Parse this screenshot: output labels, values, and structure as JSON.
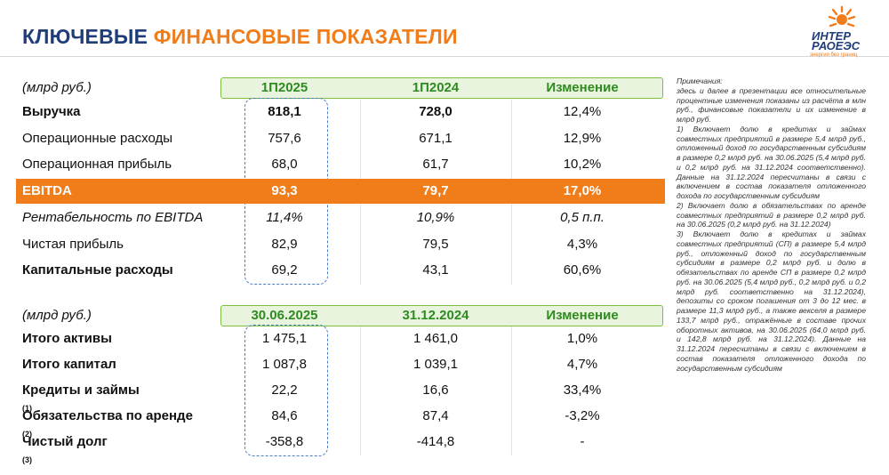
{
  "header": {
    "title_part1": "КЛЮЧЕВЫЕ",
    "title_part2": "ФИНАНСОВЫЕ ПОКАЗАТЕЛИ",
    "logo_line1": "ИНТЕР",
    "logo_line2": "РАОЕЭС",
    "logo_tagline": "энергия без границ"
  },
  "table1": {
    "header": [
      "(млрд руб.)",
      "1П2025",
      "1П2024",
      "Изменение"
    ],
    "rows": [
      {
        "label": "Выручка",
        "values": [
          "818,1",
          "728,0",
          "12,4%"
        ]
      },
      {
        "label": "Операционные расходы",
        "values": [
          "757,6",
          "671,1",
          "12,9%"
        ]
      },
      {
        "label": "Операционная прибыль",
        "values": [
          "68,0",
          "61,7",
          "10,2%"
        ]
      },
      {
        "label": "EBITDA",
        "values": [
          "93,3",
          "79,7",
          "17,0%"
        ]
      },
      {
        "label": "Рентабельность по EBITDA",
        "values": [
          "11,4%",
          "10,9%",
          "0,5 п.п."
        ]
      },
      {
        "label": "Чистая прибыль",
        "values": [
          "82,9",
          "79,5",
          "4,3%"
        ]
      },
      {
        "label": "Капитальные расходы",
        "values": [
          "69,2",
          "43,1",
          "60,6%"
        ]
      }
    ]
  },
  "table2": {
    "header": [
      "(млрд руб.)",
      "30.06.2025",
      "31.12.2024",
      "Изменение"
    ],
    "rows": [
      {
        "label": "Итого активы",
        "values": [
          "1 475,1",
          "1 461,0",
          "1,0%"
        ]
      },
      {
        "label": "Итого капитал",
        "values": [
          "1 087,8",
          "1 039,1",
          "4,7%"
        ]
      },
      {
        "label": "Кредиты и займы",
        "ref": "(1)",
        "values": [
          "22,2",
          "16,6",
          "33,4%"
        ]
      },
      {
        "label": "Обязательства по аренде",
        "ref": "(2)",
        "values": [
          "84,6",
          "87,4",
          "-3,2%"
        ]
      },
      {
        "label": "Чистый долг",
        "ref": "(3)",
        "values": [
          "-358,8",
          "-414,8",
          "-"
        ]
      }
    ]
  },
  "notes": {
    "title": "Примечания:",
    "paragraphs": [
      "здесь и далее в презентации все относительные процентные изменения показаны из расчёта в млн руб., финансовые показатели и их изменение в млрд руб.",
      "1) Включает долю в кредитах и займах совместных предприятий в размере 5,4 млрд руб., отложенный доход по государственным субсидиям в размере 0,2 млрд руб. на 30.06.2025 (5,4 млрд руб. и 0,2 млрд руб. на 31.12.2024 соответственно). Данные на 31.12.2024 пересчитаны в связи с включением в состав показателя отложенного дохода по государственным субсидиям",
      "2) Включает долю в обязательствах по аренде совместных предприятий в размере 0,2 млрд руб. на 30.06.2025 (0,2 млрд руб. на 31.12.2024)",
      "3) Включает долю в кредитах и займах совместных предприятий (СП) в размере 5,4 млрд руб., отложенный доход по государственным субсидиям в размере 0,2 млрд руб. и долю в обязательствах по аренде СП в размере 0,2 млрд руб. на 30.06.2025 (5,4 млрд руб., 0,2 млрд руб. и 0,2 млрд руб. соответственно на 31.12.2024), депозиты со сроком погашения от 3 до 12 мес. в размере 11,3 млрд руб., а также векселя в размере 133,7 млрд руб., отражённые в составе прочих оборотных активов, на 30.06.2025 (64,0 млрд руб. и 142,8 млрд руб. на 31.12.2024). Данные на 31.12.2024 пересчитаны в связи с включением в состав показателя отложенного дохода по государственным субсидиям"
    ]
  }
}
